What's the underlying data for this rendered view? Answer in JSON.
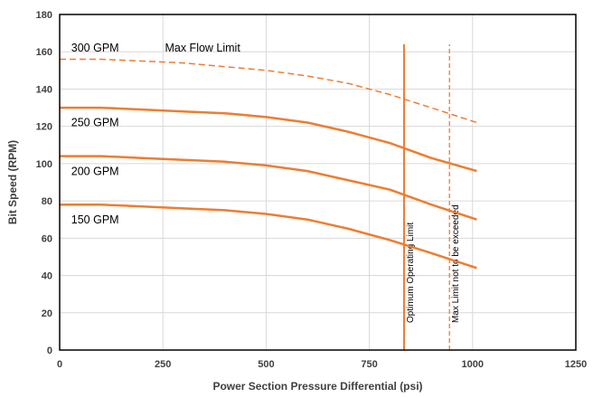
{
  "chart_data": {
    "type": "line",
    "xlabel": "Power Section Pressure Differential (psi)",
    "ylabel": "Bit Speed (RPM)",
    "xlim": [
      0,
      1250
    ],
    "ylim": [
      0,
      180
    ],
    "xticks": [
      0,
      250,
      500,
      750,
      1000,
      1250
    ],
    "yticks": [
      0,
      20,
      40,
      60,
      80,
      100,
      120,
      140,
      160,
      180
    ],
    "grid": true,
    "colors": {
      "series": "#ED7D31",
      "grid": "#d9d9d9",
      "frame": "#000000"
    },
    "series": [
      {
        "name": "300 GPM",
        "style": "dashed",
        "x": [
          0,
          100,
          200,
          300,
          400,
          500,
          600,
          700,
          800,
          900,
          1010
        ],
        "y": [
          156,
          156,
          155,
          154,
          152,
          150,
          147,
          143,
          137,
          130,
          122
        ]
      },
      {
        "name": "250 GPM",
        "style": "solid",
        "x": [
          0,
          100,
          200,
          300,
          400,
          500,
          600,
          700,
          800,
          900,
          1010
        ],
        "y": [
          130,
          130,
          129,
          128,
          127,
          125,
          122,
          117,
          111,
          103,
          96
        ]
      },
      {
        "name": "200 GPM",
        "style": "solid",
        "x": [
          0,
          100,
          200,
          300,
          400,
          500,
          600,
          700,
          800,
          900,
          1010
        ],
        "y": [
          104,
          104,
          103,
          102,
          101,
          99,
          96,
          91,
          86,
          78,
          70
        ]
      },
      {
        "name": "150 GPM",
        "style": "solid",
        "x": [
          0,
          100,
          200,
          300,
          400,
          500,
          600,
          700,
          800,
          900,
          1010
        ],
        "y": [
          78,
          78,
          77,
          76,
          75,
          73,
          70,
          65,
          59,
          52,
          44
        ]
      }
    ],
    "annotations": [
      {
        "text": "Max Flow Limit",
        "x": 255,
        "y": 160
      }
    ],
    "vertical_lines": [
      {
        "label": "Optimum Operating Limit",
        "x": 834,
        "ymin": 0,
        "ymax": 164,
        "style": "solid"
      },
      {
        "label": "Max Limit not to be exceeded",
        "x": 944,
        "ymin": 0,
        "ymax": 164,
        "style": "dashed"
      }
    ],
    "series_labels": [
      {
        "text": "300 GPM",
        "x": 28,
        "y": 160
      },
      {
        "text": "250 GPM",
        "x": 28,
        "y": 120
      },
      {
        "text": "200 GPM",
        "x": 28,
        "y": 94
      },
      {
        "text": "150 GPM",
        "x": 28,
        "y": 68
      }
    ]
  }
}
